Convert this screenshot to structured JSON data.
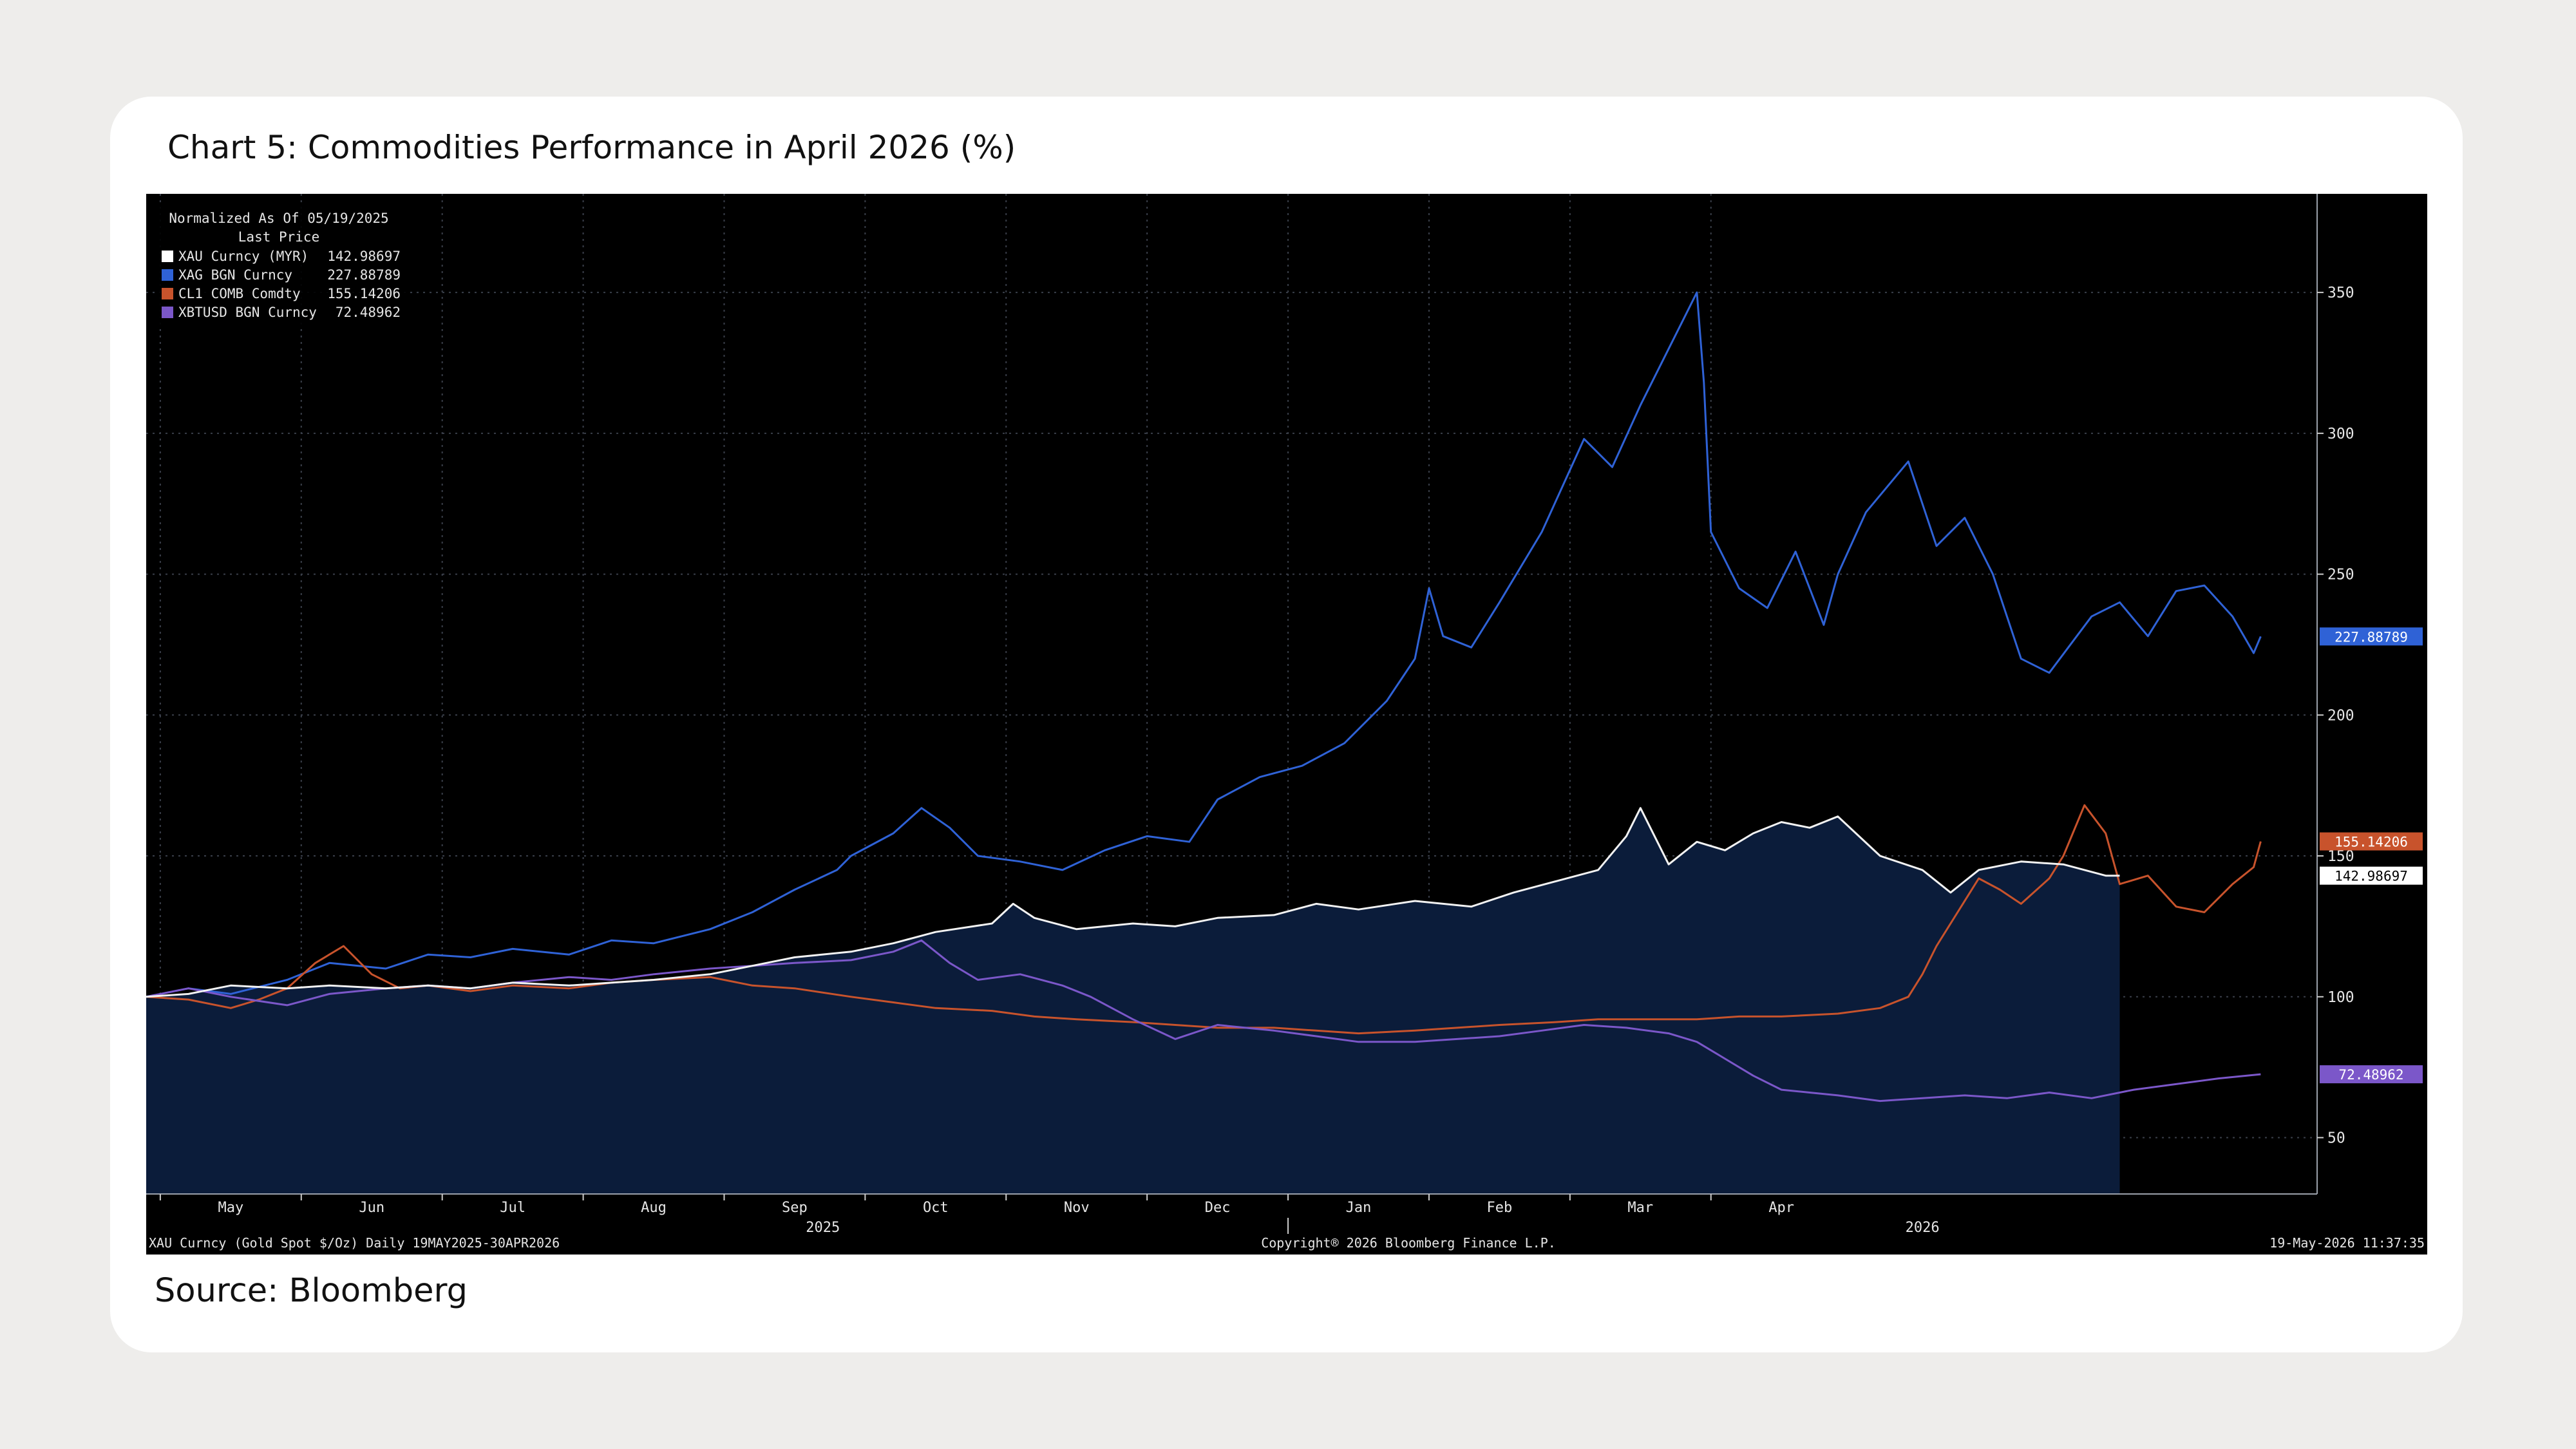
{
  "title": "Chart 5: Commodities Performance in April 2026 (%)",
  "source": "Source: Bloomberg",
  "chart_data": {
    "type": "line",
    "legend": {
      "header": "Normalized As Of 05/19/2025",
      "subheader": "Last Price",
      "placement": "top-left"
    },
    "footer": {
      "left": "XAU Curncy (Gold Spot  $/Oz) Daily 19MAY2025-30APR2026",
      "center": "Copyright® 2026 Bloomberg Finance L.P.",
      "right": "19-May-2026 11:37:35"
    },
    "x_ticks": [
      "May",
      "Jun",
      "Jul",
      "Aug",
      "Sep",
      "Oct",
      "Nov",
      "Dec",
      "Jan",
      "Feb",
      "Mar",
      "Apr"
    ],
    "years": [
      "2025",
      "2026"
    ],
    "ylim": [
      30,
      385
    ],
    "yticks": [
      50,
      100,
      150,
      200,
      250,
      300,
      350
    ],
    "grid": true,
    "colors": {
      "background": "#000000",
      "area_fill": "#0b1c3a",
      "grid": "#3a3f4a",
      "axis_text": "#e6e6e6"
    },
    "series": [
      {
        "name": "XAU Curncy (MYR)",
        "last": "142.98697",
        "color": "#f2f2f2",
        "fill": true,
        "points": [
          [
            0,
            100
          ],
          [
            0.3,
            101
          ],
          [
            0.6,
            104
          ],
          [
            1.0,
            103
          ],
          [
            1.3,
            104
          ],
          [
            1.7,
            103
          ],
          [
            2.0,
            104
          ],
          [
            2.3,
            103
          ],
          [
            2.6,
            105
          ],
          [
            3.0,
            104
          ],
          [
            3.3,
            105
          ],
          [
            3.6,
            106
          ],
          [
            4.0,
            108
          ],
          [
            4.3,
            111
          ],
          [
            4.6,
            114
          ],
          [
            5.0,
            116
          ],
          [
            5.3,
            119
          ],
          [
            5.6,
            123
          ],
          [
            6.0,
            126
          ],
          [
            6.15,
            133
          ],
          [
            6.3,
            128
          ],
          [
            6.6,
            124
          ],
          [
            7.0,
            126
          ],
          [
            7.3,
            125
          ],
          [
            7.6,
            128
          ],
          [
            8.0,
            129
          ],
          [
            8.3,
            133
          ],
          [
            8.6,
            131
          ],
          [
            9.0,
            134
          ],
          [
            9.4,
            132
          ],
          [
            9.7,
            137
          ],
          [
            10.0,
            141
          ],
          [
            10.3,
            145
          ],
          [
            10.5,
            157
          ],
          [
            10.6,
            167
          ],
          [
            10.7,
            157
          ],
          [
            10.8,
            147
          ],
          [
            11.0,
            155
          ],
          [
            11.2,
            152
          ],
          [
            11.4,
            158
          ],
          [
            11.6,
            162
          ],
          [
            11.8,
            160
          ],
          [
            12.0,
            164
          ],
          [
            12.3,
            150
          ],
          [
            12.6,
            145
          ],
          [
            12.8,
            137
          ],
          [
            13.0,
            145
          ],
          [
            13.3,
            148
          ],
          [
            13.6,
            147
          ],
          [
            13.9,
            143
          ],
          [
            14.0,
            142.98697
          ]
        ]
      },
      {
        "name": "XAG BGN Curncy",
        "last": "227.88789",
        "color": "#2f62d6",
        "fill": false,
        "points": [
          [
            0,
            100
          ],
          [
            0.3,
            103
          ],
          [
            0.6,
            101
          ],
          [
            1.0,
            106
          ],
          [
            1.3,
            112
          ],
          [
            1.7,
            110
          ],
          [
            2.0,
            115
          ],
          [
            2.3,
            114
          ],
          [
            2.6,
            117
          ],
          [
            3.0,
            115
          ],
          [
            3.3,
            120
          ],
          [
            3.6,
            119
          ],
          [
            4.0,
            124
          ],
          [
            4.3,
            130
          ],
          [
            4.6,
            138
          ],
          [
            4.9,
            145
          ],
          [
            5.0,
            150
          ],
          [
            5.3,
            158
          ],
          [
            5.5,
            167
          ],
          [
            5.7,
            160
          ],
          [
            5.9,
            150
          ],
          [
            6.2,
            148
          ],
          [
            6.5,
            145
          ],
          [
            6.8,
            152
          ],
          [
            7.1,
            157
          ],
          [
            7.4,
            155
          ],
          [
            7.6,
            170
          ],
          [
            7.9,
            178
          ],
          [
            8.2,
            182
          ],
          [
            8.5,
            190
          ],
          [
            8.8,
            205
          ],
          [
            9.0,
            220
          ],
          [
            9.1,
            245
          ],
          [
            9.2,
            228
          ],
          [
            9.4,
            224
          ],
          [
            9.6,
            240
          ],
          [
            9.9,
            265
          ],
          [
            10.2,
            298
          ],
          [
            10.4,
            288
          ],
          [
            10.6,
            310
          ],
          [
            10.8,
            330
          ],
          [
            11.0,
            350
          ],
          [
            11.05,
            318
          ],
          [
            11.1,
            265
          ],
          [
            11.3,
            245
          ],
          [
            11.5,
            238
          ],
          [
            11.7,
            258
          ],
          [
            11.9,
            232
          ],
          [
            12.0,
            250
          ],
          [
            12.2,
            272
          ],
          [
            12.5,
            290
          ],
          [
            12.7,
            260
          ],
          [
            12.9,
            270
          ],
          [
            13.1,
            250
          ],
          [
            13.3,
            220
          ],
          [
            13.5,
            215
          ],
          [
            13.8,
            235
          ],
          [
            14.0,
            240
          ],
          [
            14.2,
            228
          ],
          [
            14.4,
            244
          ],
          [
            14.6,
            246
          ],
          [
            14.8,
            235
          ],
          [
            14.95,
            222
          ],
          [
            15.0,
            227.89
          ]
        ]
      },
      {
        "name": "CL1 COMB Comdty",
        "last": "155.14206",
        "color": "#c8532c",
        "fill": false,
        "points": [
          [
            0,
            100
          ],
          [
            0.3,
            99
          ],
          [
            0.6,
            96
          ],
          [
            0.8,
            99
          ],
          [
            1.0,
            103
          ],
          [
            1.2,
            112
          ],
          [
            1.4,
            118
          ],
          [
            1.6,
            108
          ],
          [
            1.8,
            103
          ],
          [
            2.0,
            104
          ],
          [
            2.3,
            102
          ],
          [
            2.6,
            104
          ],
          [
            3.0,
            103
          ],
          [
            3.3,
            105
          ],
          [
            3.6,
            106
          ],
          [
            4.0,
            107
          ],
          [
            4.3,
            104
          ],
          [
            4.6,
            103
          ],
          [
            5.0,
            100
          ],
          [
            5.3,
            98
          ],
          [
            5.6,
            96
          ],
          [
            6.0,
            95
          ],
          [
            6.3,
            93
          ],
          [
            6.6,
            92
          ],
          [
            7.0,
            91
          ],
          [
            7.3,
            90
          ],
          [
            7.6,
            89
          ],
          [
            8.0,
            89
          ],
          [
            8.3,
            88
          ],
          [
            8.6,
            87
          ],
          [
            9.0,
            88
          ],
          [
            9.3,
            89
          ],
          [
            9.6,
            90
          ],
          [
            10.0,
            91
          ],
          [
            10.3,
            92
          ],
          [
            10.6,
            92
          ],
          [
            11.0,
            92
          ],
          [
            11.3,
            93
          ],
          [
            11.6,
            93
          ],
          [
            12.0,
            94
          ],
          [
            12.3,
            96
          ],
          [
            12.5,
            100
          ],
          [
            12.6,
            108
          ],
          [
            12.7,
            118
          ],
          [
            12.85,
            130
          ],
          [
            13.0,
            142
          ],
          [
            13.15,
            138
          ],
          [
            13.3,
            133
          ],
          [
            13.5,
            142
          ],
          [
            13.6,
            150
          ],
          [
            13.75,
            168
          ],
          [
            13.9,
            158
          ],
          [
            14.0,
            140
          ],
          [
            14.2,
            143
          ],
          [
            14.4,
            132
          ],
          [
            14.6,
            130
          ],
          [
            14.8,
            140
          ],
          [
            14.95,
            146
          ],
          [
            15.0,
            155.14
          ]
        ]
      },
      {
        "name": "XBTUSD BGN Curncy",
        "last": "72.48962",
        "color": "#7b57c9",
        "fill": false,
        "points": [
          [
            0,
            100
          ],
          [
            0.3,
            103
          ],
          [
            0.6,
            100
          ],
          [
            1.0,
            97
          ],
          [
            1.3,
            101
          ],
          [
            1.7,
            103
          ],
          [
            2.0,
            104
          ],
          [
            2.3,
            103
          ],
          [
            2.6,
            105
          ],
          [
            3.0,
            107
          ],
          [
            3.3,
            106
          ],
          [
            3.6,
            108
          ],
          [
            4.0,
            110
          ],
          [
            4.3,
            111
          ],
          [
            4.6,
            112
          ],
          [
            5.0,
            113
          ],
          [
            5.3,
            116
          ],
          [
            5.5,
            120
          ],
          [
            5.7,
            112
          ],
          [
            5.9,
            106
          ],
          [
            6.2,
            108
          ],
          [
            6.5,
            104
          ],
          [
            6.7,
            100
          ],
          [
            7.0,
            92
          ],
          [
            7.3,
            85
          ],
          [
            7.6,
            90
          ],
          [
            8.0,
            88
          ],
          [
            8.3,
            86
          ],
          [
            8.6,
            84
          ],
          [
            9.0,
            84
          ],
          [
            9.3,
            85
          ],
          [
            9.6,
            86
          ],
          [
            9.9,
            88
          ],
          [
            10.2,
            90
          ],
          [
            10.5,
            89
          ],
          [
            10.8,
            87
          ],
          [
            11.0,
            84
          ],
          [
            11.2,
            78
          ],
          [
            11.4,
            72
          ],
          [
            11.6,
            67
          ],
          [
            11.8,
            66
          ],
          [
            12.0,
            65
          ],
          [
            12.3,
            63
          ],
          [
            12.6,
            64
          ],
          [
            12.9,
            65
          ],
          [
            13.2,
            64
          ],
          [
            13.5,
            66
          ],
          [
            13.8,
            64
          ],
          [
            14.1,
            67
          ],
          [
            14.4,
            69
          ],
          [
            14.7,
            71
          ],
          [
            15.0,
            72.49
          ]
        ]
      }
    ]
  }
}
